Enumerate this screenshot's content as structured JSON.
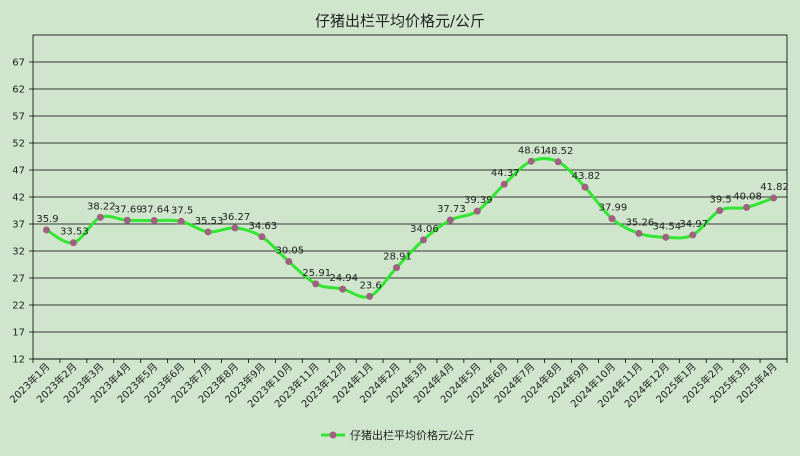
{
  "chart_data": {
    "type": "line",
    "title": "仔猪出栏平均价格元/公斤",
    "xlabel": "",
    "ylabel": "",
    "ylim": [
      12,
      72
    ],
    "yticks": [
      12,
      17,
      22,
      27,
      32,
      37,
      42,
      47,
      52,
      57,
      62,
      67
    ],
    "grid": true,
    "legend_position": "bottom",
    "categories": [
      "2023年1月",
      "2023年2月",
      "2023年3月",
      "2023年4月",
      "2023年5月",
      "2023年6月",
      "2023年7月",
      "2023年8月",
      "2023年9月",
      "2023年10月",
      "2023年11月",
      "2023年12月",
      "2024年1月",
      "2024年2月",
      "2024年3月",
      "2024年4月",
      "2024年5月",
      "2024年6月",
      "2024年7月",
      "2024年8月",
      "2024年9月",
      "2024年10月",
      "2024年11月",
      "2024年12月",
      "2025年1月",
      "2025年2月",
      "2025年3月",
      "2025年4月"
    ],
    "series": [
      {
        "name": "仔猪出栏平均价格元/公斤",
        "values": [
          35.9,
          33.53,
          38.22,
          37.69,
          37.64,
          37.5,
          35.53,
          36.27,
          34.63,
          30.05,
          25.91,
          24.94,
          23.6,
          28.91,
          34.06,
          37.73,
          39.39,
          44.37,
          48.61,
          48.52,
          43.82,
          37.99,
          35.26,
          34.54,
          34.97,
          39.5,
          40.08,
          41.82
        ],
        "labels": [
          "35.9",
          "33.53",
          "38.22",
          "37.69",
          "37.64",
          "37.5",
          "35.53",
          "36.27",
          "34.63",
          "30.05",
          "25.91",
          "24.94",
          "23.6",
          "28.91",
          "34.06",
          "37.73",
          "39.39",
          "44.37",
          "48.61",
          "48.52",
          "43.82",
          "37.99",
          "35.26",
          "34.54",
          "34.97",
          "39.5",
          "40.08",
          "41.82"
        ]
      }
    ],
    "colors": {
      "line": "#33e533",
      "marker": "#a06080",
      "grid": "#000000",
      "background": "#cfe6cd"
    }
  }
}
